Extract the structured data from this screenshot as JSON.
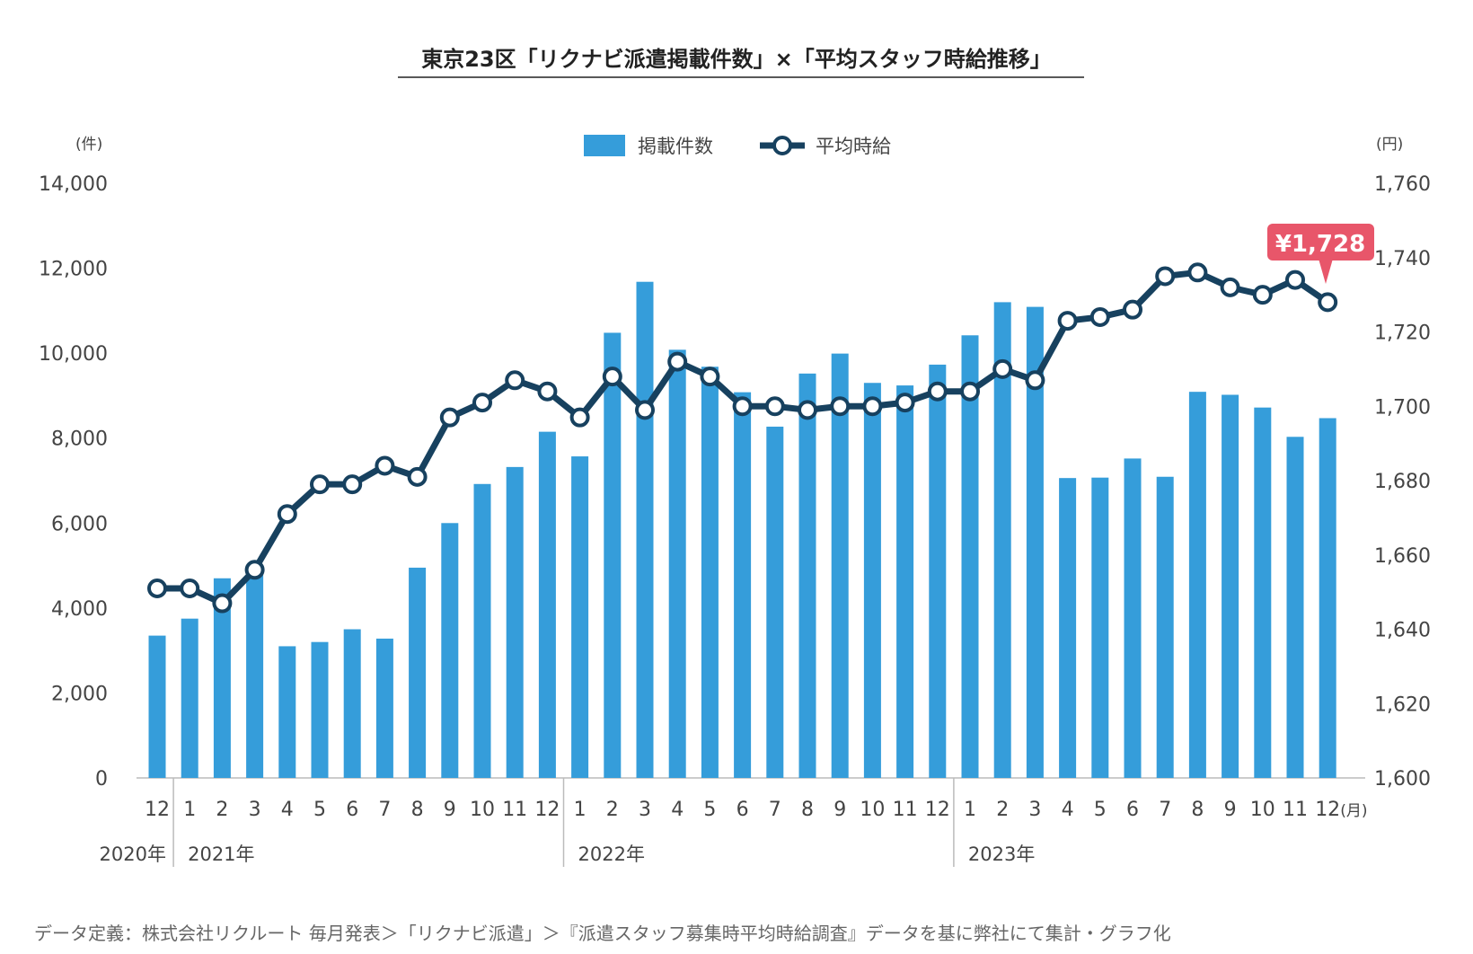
{
  "title": "東京23区「リクナビ派遣掲載件数」×「平均スタッフ時給推移」",
  "footnote": "データ定義：株式会社リクルート 毎月発表＞「リクナビ派遣」＞『派遣スタッフ募集時平均時給調査』データを基に弊社にて集計・グラフ化",
  "callout_label": "¥1,728",
  "colors": {
    "bar": "#359DDA",
    "line": "#17415F",
    "callout": "#E8566A",
    "axis": "#BBBBBB"
  },
  "chart_data": {
    "type": "bar+line",
    "categories": [
      "12",
      "1",
      "2",
      "3",
      "4",
      "5",
      "6",
      "7",
      "8",
      "9",
      "10",
      "11",
      "12",
      "1",
      "2",
      "3",
      "4",
      "5",
      "6",
      "7",
      "8",
      "9",
      "10",
      "11",
      "12",
      "1",
      "2",
      "3",
      "4",
      "5",
      "6",
      "7",
      "8",
      "9",
      "10",
      "11",
      "12"
    ],
    "x_unit": "(月)",
    "years": [
      {
        "label": "2020年",
        "start": 0,
        "end": 0
      },
      {
        "label": "2021年",
        "start": 1,
        "end": 12
      },
      {
        "label": "2022年",
        "start": 13,
        "end": 24
      },
      {
        "label": "2023年",
        "start": 25,
        "end": 36
      }
    ],
    "y_left": {
      "unit": "(件)",
      "ylim": [
        0,
        14000
      ],
      "ticks": [
        "0",
        "2,000",
        "4,000",
        "6,000",
        "8,000",
        "10,000",
        "12,000",
        "14,000"
      ]
    },
    "y_right": {
      "unit": "(円)",
      "ylim": [
        1600,
        1760
      ],
      "ticks": [
        "1,600",
        "1,620",
        "1,640",
        "1,660",
        "1,680",
        "1,700",
        "1,720",
        "1,740",
        "1,760"
      ]
    },
    "series": [
      {
        "name": "掲載件数",
        "type": "bar",
        "axis": "left",
        "values": [
          3350,
          3750,
          4700,
          4850,
          3100,
          3200,
          3500,
          3280,
          4950,
          6000,
          6920,
          7320,
          8150,
          7570,
          10480,
          11680,
          10080,
          9680,
          9080,
          8270,
          9520,
          9990,
          9300,
          9240,
          9730,
          10420,
          11200,
          11090,
          7060,
          7070,
          7520,
          7090,
          9090,
          9020,
          8720,
          8030,
          8470
        ]
      },
      {
        "name": "平均時給",
        "type": "line",
        "axis": "right",
        "values": [
          1651,
          1651,
          1647,
          1656,
          1671,
          1679,
          1679,
          1684,
          1681,
          1697,
          1701,
          1707,
          1704,
          1697,
          1708,
          1699,
          1712,
          1708,
          1700,
          1700,
          1699,
          1700,
          1700,
          1701,
          1704,
          1704,
          1710,
          1707,
          1723,
          1724,
          1726,
          1735,
          1736,
          1732,
          1730,
          1734,
          1728
        ]
      }
    ]
  }
}
